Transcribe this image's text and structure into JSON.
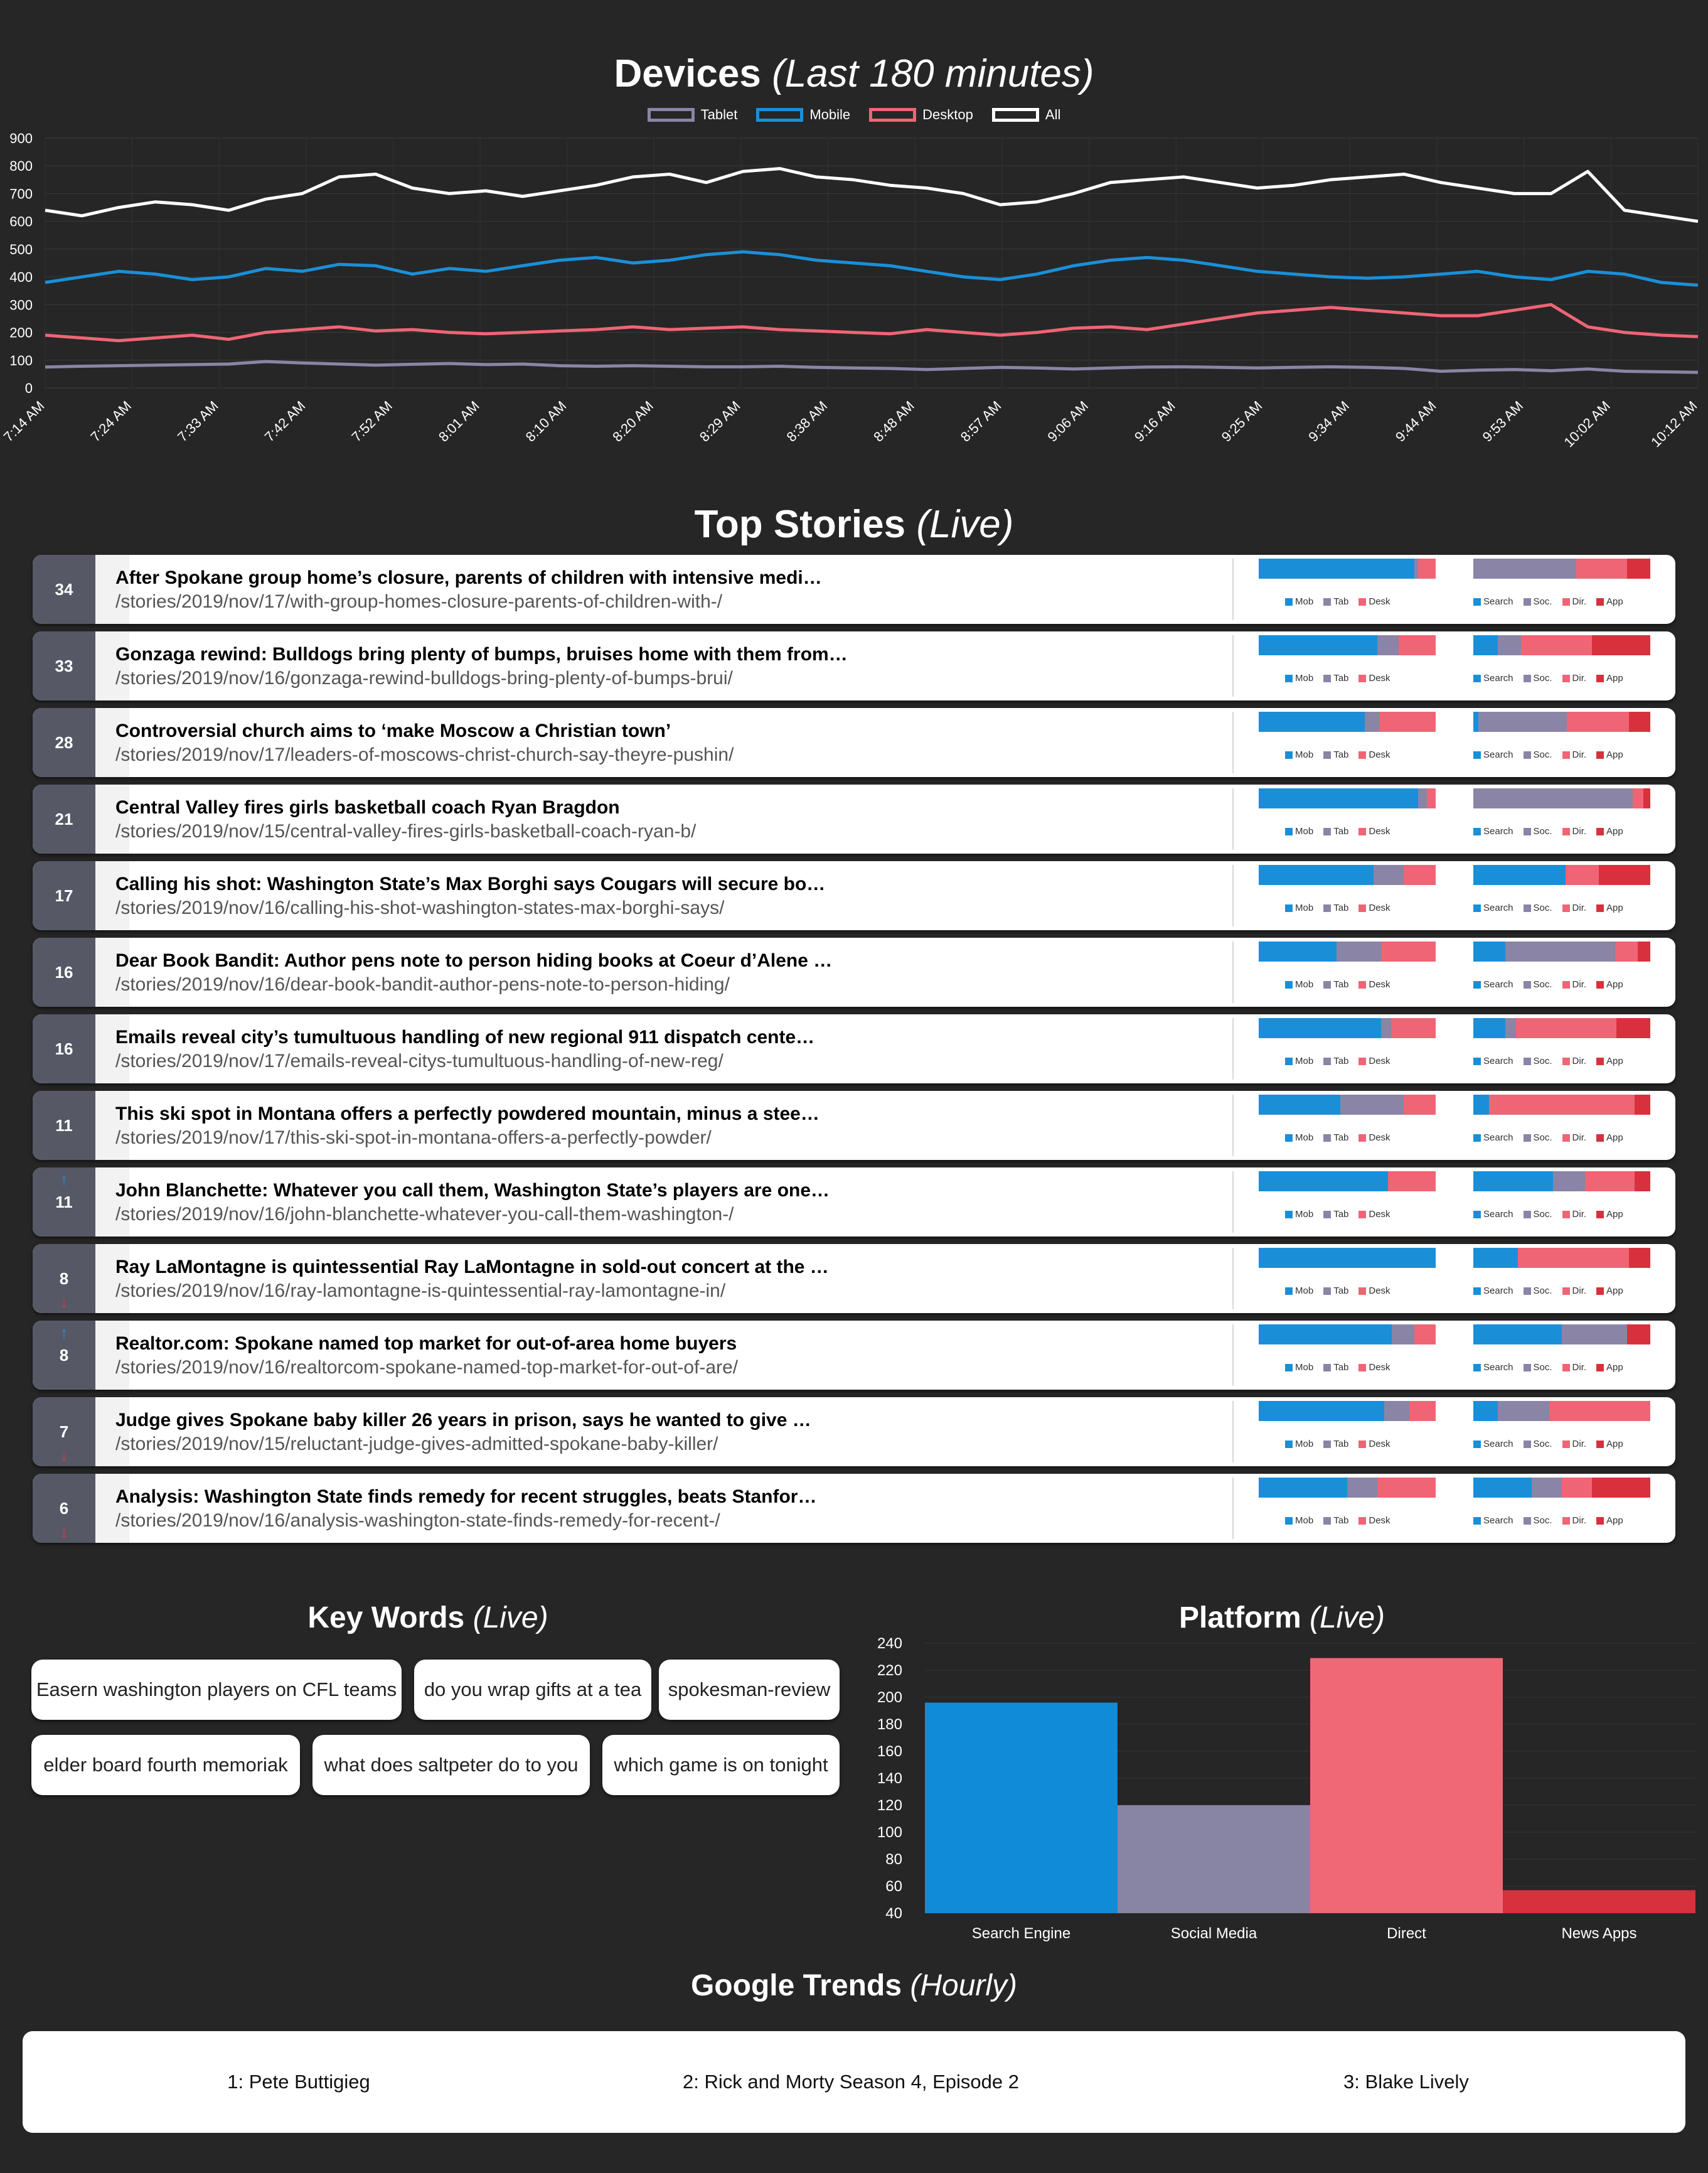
{
  "devices": {
    "title": "Devices",
    "subtitle": "(Last 180 minutes)",
    "chart_data": {
      "type": "line",
      "x_labels": [
        "7:14 AM",
        "7:24 AM",
        "7:33 AM",
        "7:42 AM",
        "7:52 AM",
        "8:01 AM",
        "8:10 AM",
        "8:20 AM",
        "8:29 AM",
        "8:38 AM",
        "8:48 AM",
        "8:57 AM",
        "9:06 AM",
        "9:16 AM",
        "9:25 AM",
        "9:34 AM",
        "9:44 AM",
        "9:53 AM",
        "10:02 AM",
        "10:12 AM"
      ],
      "ylim": [
        0,
        900
      ],
      "y_ticks": [
        0,
        100,
        200,
        300,
        400,
        500,
        600,
        700,
        800,
        900
      ],
      "series": [
        {
          "name": "Tablet",
          "color": "#8a84a6",
          "values": [
            75,
            78,
            80,
            82,
            84,
            86,
            95,
            90,
            86,
            82,
            85,
            88,
            84,
            86,
            80,
            78,
            80,
            78,
            76,
            76,
            78,
            74,
            72,
            70,
            66,
            70,
            74,
            72,
            68,
            72,
            75,
            76,
            74,
            72,
            74,
            76,
            74,
            70,
            60,
            64,
            66,
            62,
            68,
            60,
            58,
            56
          ]
        },
        {
          "name": "Mobile",
          "color": "#1a8fd8",
          "values": [
            380,
            400,
            420,
            410,
            390,
            400,
            430,
            420,
            445,
            440,
            410,
            430,
            420,
            440,
            460,
            470,
            450,
            460,
            480,
            490,
            480,
            460,
            450,
            440,
            420,
            400,
            390,
            410,
            440,
            460,
            470,
            460,
            440,
            420,
            410,
            400,
            395,
            400,
            410,
            420,
            400,
            390,
            420,
            410,
            380,
            370
          ]
        },
        {
          "name": "Desktop",
          "color": "#ef6575",
          "values": [
            190,
            180,
            170,
            180,
            190,
            175,
            200,
            210,
            220,
            205,
            210,
            200,
            195,
            200,
            205,
            210,
            220,
            210,
            215,
            220,
            210,
            205,
            200,
            195,
            210,
            200,
            190,
            200,
            215,
            220,
            210,
            230,
            250,
            270,
            280,
            290,
            280,
            270,
            260,
            260,
            280,
            300,
            220,
            200,
            190,
            185
          ]
        },
        {
          "name": "All",
          "color": "#ffffff",
          "values": [
            640,
            620,
            650,
            670,
            660,
            640,
            680,
            700,
            760,
            770,
            720,
            700,
            710,
            690,
            710,
            730,
            760,
            770,
            740,
            780,
            790,
            760,
            750,
            730,
            720,
            700,
            660,
            670,
            700,
            740,
            750,
            760,
            740,
            720,
            730,
            750,
            760,
            770,
            740,
            720,
            700,
            700,
            780,
            640,
            620,
            600
          ]
        }
      ]
    }
  },
  "top_stories": {
    "title": "Top Stories",
    "subtitle": "(Live)",
    "legend_device": [
      "Mob",
      "Tab",
      "Desk"
    ],
    "legend_source": [
      "Search",
      "Soc.",
      "Dir.",
      "App"
    ],
    "device_colors": [
      "#1a8fd8",
      "#8a84a6",
      "#ef6575"
    ],
    "source_colors": [
      "#1a8fd8",
      "#8a84a6",
      "#ef6575",
      "#d9303d"
    ],
    "items": [
      {
        "count": "34",
        "trend": "",
        "title": "After Spokane group home’s closure, parents of children with intensive medi…",
        "path": "/stories/2019/nov/17/with-group-homes-closure-parents-of-children-with-/",
        "device": [
          0.88,
          0.02,
          0.1
        ],
        "source": [
          0.0,
          0.58,
          0.29,
          0.13
        ]
      },
      {
        "count": "33",
        "trend": "",
        "title": "Gonzaga rewind: Bulldogs bring plenty of bumps, bruises home with them from…",
        "path": "/stories/2019/nov/16/gonzaga-rewind-bulldogs-bring-plenty-of-bumps-brui/",
        "device": [
          0.67,
          0.12,
          0.21
        ],
        "source": [
          0.14,
          0.13,
          0.4,
          0.33
        ]
      },
      {
        "count": "28",
        "trend": "",
        "title": "Controversial church aims to ‘make Moscow a Christian town’",
        "path": "/stories/2019/nov/17/leaders-of-moscows-christ-church-say-theyre-pushin/",
        "device": [
          0.6,
          0.08,
          0.32
        ],
        "source": [
          0.03,
          0.5,
          0.35,
          0.12
        ]
      },
      {
        "count": "21",
        "trend": "",
        "title": "Central Valley fires girls basketball coach Ryan Bragdon",
        "path": "/stories/2019/nov/15/central-valley-fires-girls-basketball-coach-ryan-b/",
        "device": [
          0.9,
          0.05,
          0.05
        ],
        "source": [
          0.0,
          0.9,
          0.06,
          0.04
        ]
      },
      {
        "count": "17",
        "trend": "",
        "title": "Calling his shot: Washington State’s Max Borghi says Cougars will secure bo…",
        "path": "/stories/2019/nov/16/calling-his-shot-washington-states-max-borghi-says/",
        "device": [
          0.65,
          0.17,
          0.18
        ],
        "source": [
          0.52,
          0.0,
          0.19,
          0.29
        ]
      },
      {
        "count": "16",
        "trend": "",
        "title": "Dear Book Bandit: Author pens note to person hiding books at Coeur d’Alene …",
        "path": "/stories/2019/nov/16/dear-book-bandit-author-pens-note-to-person-hiding/",
        "device": [
          0.44,
          0.25,
          0.31
        ],
        "source": [
          0.18,
          0.62,
          0.13,
          0.07
        ]
      },
      {
        "count": "16",
        "trend": "",
        "title": "Emails reveal city’s tumultuous handling of new regional 911 dispatch cente…",
        "path": "/stories/2019/nov/17/emails-reveal-citys-tumultuous-handling-of-new-reg/",
        "device": [
          0.69,
          0.06,
          0.25
        ],
        "source": [
          0.18,
          0.06,
          0.57,
          0.19
        ]
      },
      {
        "count": "11",
        "trend": "",
        "title": "This ski spot in Montana offers a perfectly powdered mountain, minus a stee…",
        "path": "/stories/2019/nov/17/this-ski-spot-in-montana-offers-a-perfectly-powder/",
        "device": [
          0.46,
          0.36,
          0.18
        ],
        "source": [
          0.09,
          0.0,
          0.82,
          0.09
        ]
      },
      {
        "count": "11",
        "trend": "up",
        "title": "John Blanchette: Whatever you call them, Washington State’s players are one…",
        "path": "/stories/2019/nov/16/john-blanchette-whatever-you-call-them-washington-/",
        "device": [
          0.73,
          0.0,
          0.27
        ],
        "source": [
          0.45,
          0.18,
          0.28,
          0.09
        ]
      },
      {
        "count": "8",
        "trend": "down",
        "title": "Ray LaMontagne is quintessential Ray LaMontagne in sold-out concert at the …",
        "path": "/stories/2019/nov/16/ray-lamontagne-is-quintessential-ray-lamontagne-in/",
        "device": [
          1.0,
          0.0,
          0.0
        ],
        "source": [
          0.25,
          0.0,
          0.63,
          0.12
        ]
      },
      {
        "count": "8",
        "trend": "up",
        "title": "Realtor.com: Spokane named top market for out-of-area home buyers",
        "path": "/stories/2019/nov/16/realtorcom-spokane-named-top-market-for-out-of-are/",
        "device": [
          0.75,
          0.13,
          0.12
        ],
        "source": [
          0.5,
          0.37,
          0.0,
          0.13
        ]
      },
      {
        "count": "7",
        "trend": "down",
        "title": "Judge gives Spokane baby killer 26 years in prison, says he wanted to give …",
        "path": "/stories/2019/nov/15/reluctant-judge-gives-admitted-spokane-baby-killer/",
        "device": [
          0.71,
          0.14,
          0.15
        ],
        "source": [
          0.14,
          0.29,
          0.57,
          0.0
        ]
      },
      {
        "count": "6",
        "trend": "down",
        "title": "Analysis: Washington State finds remedy for recent struggles, beats Stanfor…",
        "path": "/stories/2019/nov/16/analysis-washington-state-finds-remedy-for-recent-/",
        "device": [
          0.5,
          0.17,
          0.33
        ],
        "source": [
          0.33,
          0.17,
          0.17,
          0.33
        ]
      }
    ]
  },
  "key_words": {
    "title": "Key Words",
    "subtitle": "(Live)",
    "items": [
      "Easern washington players on CFL teams",
      "do you wrap gifts at a tea",
      "spokesman-review",
      "elder board fourth memoriak",
      "what does saltpeter do to you",
      "which game is on tonight"
    ]
  },
  "platform": {
    "title": "Platform",
    "subtitle": "(Live)",
    "chart_data": {
      "type": "bar",
      "categories": [
        "Search Engine",
        "Social Media",
        "Direct",
        "News Apps"
      ],
      "values": [
        196,
        120,
        229,
        57
      ],
      "colors": [
        "#0f8bd8",
        "#8784a4",
        "#f06876",
        "#d6313d"
      ],
      "ylim": [
        40,
        240
      ],
      "y_ticks": [
        40,
        60,
        80,
        100,
        120,
        140,
        160,
        180,
        200,
        220,
        240
      ]
    }
  },
  "google_trends": {
    "title": "Google Trends",
    "subtitle": "(Hourly)",
    "items": [
      "1: Pete Buttigieg",
      "2: Rick and Morty Season 4, Episode 2",
      "3: Blake Lively"
    ]
  }
}
